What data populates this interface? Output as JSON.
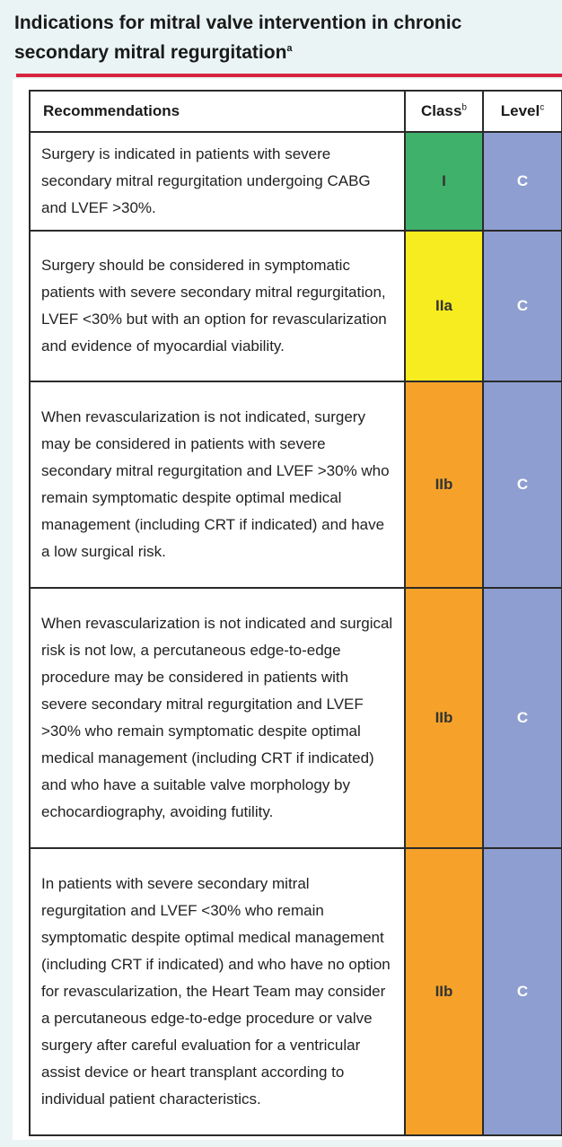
{
  "title": "Indications for mitral valve intervention in chronic secondary mitral regurgitation",
  "title_sup": "a",
  "headers": {
    "recommendations": "Recommendations",
    "class": "Class",
    "class_sup": "b",
    "level": "Level",
    "level_sup": "c"
  },
  "rows": [
    {
      "text": "Surgery is indicated in patients with severe secondary mitral regurgitation undergoing CABG and LVEF >30%.",
      "class": "I",
      "level": "C"
    },
    {
      "text": "Surgery should be considered in symptomatic patients with severe secondary mitral regurgitation, LVEF <30% but with an option for revascularization and evidence of myocardial viability.",
      "class": "IIa",
      "level": "C"
    },
    {
      "text": "When revascularization is not indicated, surgery may be considered in patients with severe secondary mitral regurgitation and LVEF >30% who remain symptomatic despite optimal medical management (including CRT if indicated) and have a low surgical risk.",
      "class": "IIb",
      "level": "C"
    },
    {
      "text": "When revascularization is not indicated and surgical risk is not low, a percutaneous edge-to-edge procedure may be considered in patients with severe secondary mitral regurgitation and LVEF >30% who remain symptomatic despite optimal medical management (including CRT if indicated) and who have a suitable valve morphology by echocardiography, avoiding futility.",
      "class": "IIb",
      "level": "C"
    },
    {
      "text": "In patients with severe secondary mitral regurgitation and LVEF <30% who remain symptomatic despite optimal medical management (including CRT if indicated) and who have no option for revascularization, the Heart Team may consider a percutaneous edge-to-edge procedure or valve surgery after careful evaluation for a ventricular assist device or heart transplant according to individual patient characteristics.",
      "class": "IIb",
      "level": "C"
    }
  ],
  "colors": {
    "class_I": "#3fb16b",
    "class_IIa": "#f7ec1f",
    "class_IIb": "#f6a22a",
    "level": "#8e9ed0",
    "rule": "#d8253f"
  }
}
